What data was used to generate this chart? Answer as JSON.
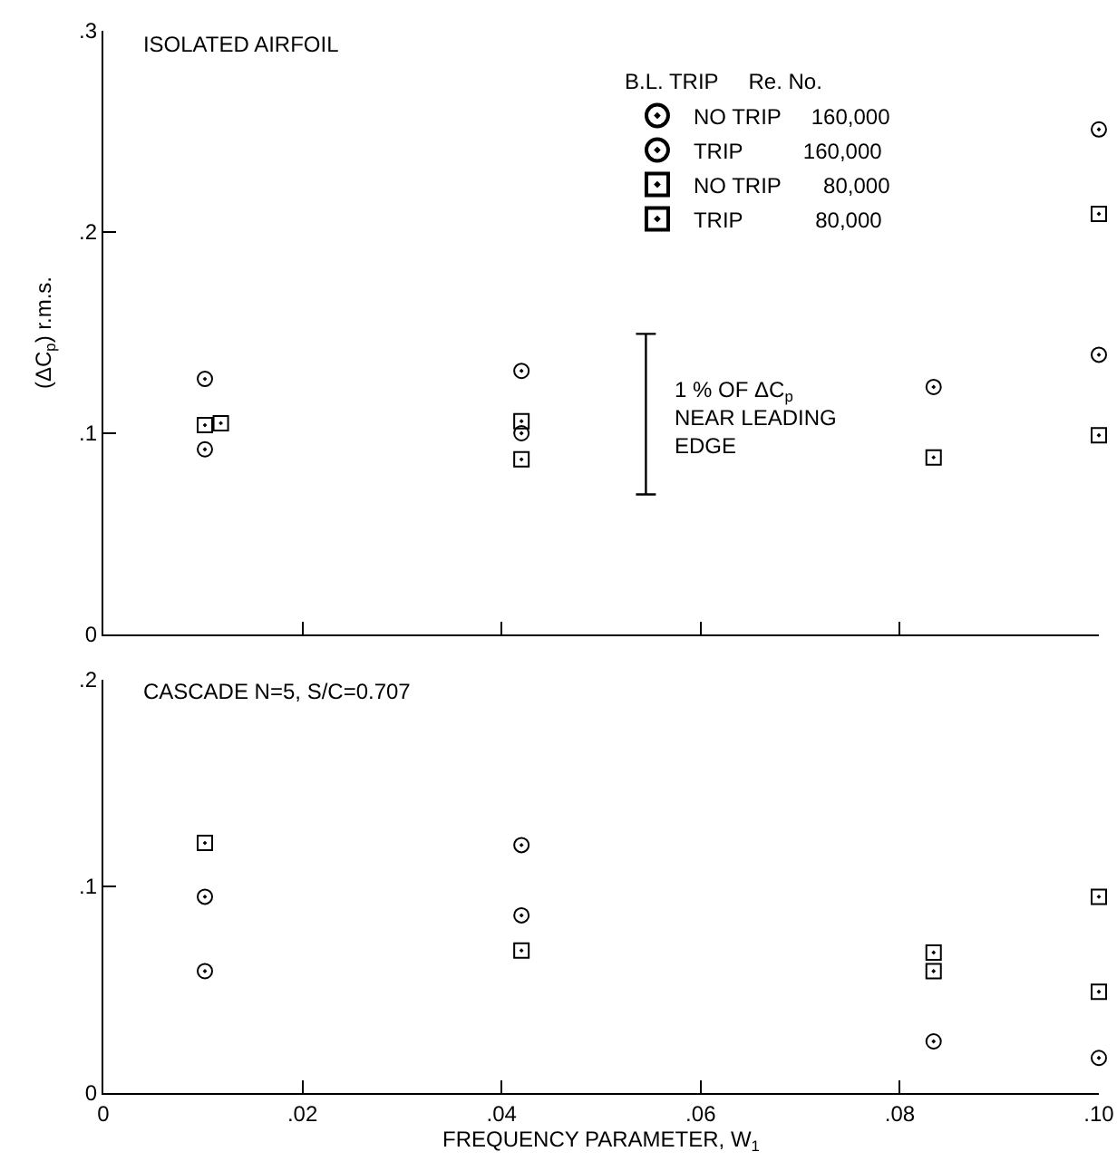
{
  "chart_data": [
    {
      "type": "scatter",
      "title": "ISOLATED AIRFOIL",
      "ylabel": "(ΔC$_{p}$) r.m.s.",
      "legend_title": "B.L. TRIP     Re. No.",
      "legend": "top right",
      "grid": false,
      "tick_labels": "y",
      "annotations": [
        "1 % OF ΔC$_{p}$\nNEAR LEADING\nEDGE"
      ],
      "xlim": [
        0,
        0.1
      ],
      "xticks": [
        {
          "value": 0.02,
          "label": null
        },
        {
          "value": 0.04,
          "label": null
        },
        {
          "value": 0.06,
          "label": null
        },
        {
          "value": 0.08,
          "label": null
        },
        {
          "value": 0.1,
          "label": null
        }
      ],
      "ylim": [
        0,
        0.3
      ],
      "yticks": [
        0,
        {
          "value": 0.1,
          "label": ".1"
        },
        {
          "value": 0.2,
          "label": ".2"
        },
        {
          "value": 0.3,
          "label": ".3"
        }
      ],
      "series": [
        {
          "name": "NO TRIP     160,000",
          "color": "#000000",
          "marker": "circle",
          "x": [
            0.0102,
            0.042,
            0.0834,
            0.1
          ],
          "values": [
            0.127,
            0.131,
            0.123,
            0.251
          ]
        },
        {
          "name": "TRIP          160,000",
          "color": "#000000",
          "marker": "circle",
          "x": [
            0.0102,
            0.042,
            0.1
          ],
          "values": [
            0.092,
            0.1,
            0.139
          ]
        },
        {
          "name": "NO TRIP       80,000",
          "color": "#000000",
          "marker": "square",
          "x": [
            0.0102,
            0.042,
            0.0834,
            0.1
          ],
          "values": [
            0.104,
            0.106,
            0.088,
            0.099
          ]
        },
        {
          "name": "TRIP            80,000",
          "color": "#000000",
          "marker": "square",
          "x": [
            0.0118,
            0.042,
            0.1
          ],
          "values": [
            0.105,
            0.087,
            0.209
          ]
        }
      ]
    },
    {
      "type": "scatter",
      "title": "CASCADE N=5, S/C=0.707",
      "xlabel": "FREQUENCY PARAMETER, W$_{1}$",
      "legend": false,
      "grid": false,
      "xlim": [
        0,
        0.1
      ],
      "xticks": [
        0,
        {
          "value": 0.02,
          "label": ".02"
        },
        {
          "value": 0.04,
          "label": ".04"
        },
        {
          "value": 0.06,
          "label": ".06"
        },
        {
          "value": 0.08,
          "label": ".08"
        },
        {
          "value": 0.1,
          "label": ".10"
        }
      ],
      "ylim": [
        0,
        0.2
      ],
      "yticks": [
        0,
        {
          "value": 0.1,
          "label": ".1"
        },
        {
          "value": 0.2,
          "label": ".2"
        }
      ],
      "series": [
        {
          "color": "#000000",
          "marker": "circle",
          "x": [
            0.0102,
            0.042,
            0.0834,
            0.1
          ],
          "values": [
            0.095,
            0.12,
            0.025,
            0.017
          ]
        },
        {
          "color": "#000000",
          "marker": "circle",
          "x": [
            0.0102,
            0.042
          ],
          "values": [
            0.059,
            0.086
          ]
        },
        {
          "color": "#000000",
          "marker": "square",
          "x": [
            0.0102,
            0.042,
            0.0834,
            0.1
          ],
          "values": [
            0.121,
            0.069,
            0.059,
            0.095
          ]
        },
        {
          "color": "#000000",
          "marker": "square",
          "x": [
            0.0834,
            0.1
          ],
          "values": [
            0.068,
            0.049
          ]
        }
      ]
    }
  ]
}
